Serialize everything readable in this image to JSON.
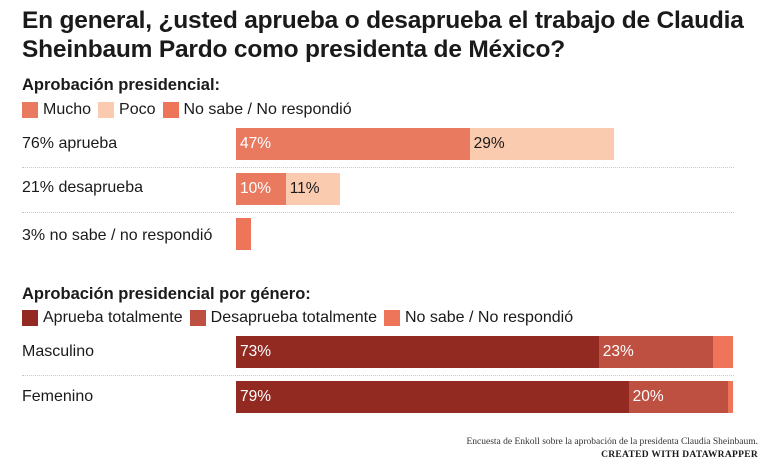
{
  "title": "En general, ¿usted aprueba o desaprueba el trabajo de Claudia Sheinbaum Pardo como presidenta de México?",
  "footer": {
    "source": "Encuesta de Enkoll sobre la aprobación de la presidenta Claudia Sheinbaum.",
    "credit": "CREATED WITH DATAWRAPPER"
  },
  "chart_data": [
    {
      "type": "bar",
      "orientation": "horizontal",
      "stacked": true,
      "title": "Aprobación presidencial:",
      "categories": [
        "76% aprueba",
        "21% desaprueba",
        "3% no sabe / no respondió"
      ],
      "xlim": [
        0,
        100
      ],
      "grid": false,
      "legend_position": "top-left",
      "series": [
        {
          "name": "Mucho",
          "values": [
            47,
            10,
            0
          ],
          "labels": [
            "47%",
            "10%",
            ""
          ],
          "color": "#ea7a5f",
          "text_color": "#ffffff"
        },
        {
          "name": "Poco",
          "values": [
            29,
            11,
            0
          ],
          "labels": [
            "29%",
            "11%",
            ""
          ],
          "color": "#fbcbb0",
          "text_color": "#1a1a1a"
        },
        {
          "name": "No sabe / No respondió",
          "values": [
            0,
            0,
            3
          ],
          "labels": [
            "",
            "",
            ""
          ],
          "color": "#ee7559",
          "text_color": "#ffffff"
        }
      ]
    },
    {
      "type": "bar",
      "orientation": "horizontal",
      "stacked": true,
      "title": "Aprobación presidencial por género:",
      "categories": [
        "Masculino",
        "Femenino"
      ],
      "xlim": [
        0,
        100
      ],
      "grid": false,
      "legend_position": "top-left",
      "series": [
        {
          "name": "Aprueba totalmente",
          "values": [
            73,
            79
          ],
          "labels": [
            "73%",
            "79%"
          ],
          "color": "#922a22",
          "text_color": "#ffffff"
        },
        {
          "name": "Desaprueba totalmente",
          "values": [
            23,
            20
          ],
          "labels": [
            "23%",
            "20%"
          ],
          "color": "#be5041",
          "text_color": "#ffffff"
        },
        {
          "name": "No sabe / No respondió",
          "values": [
            4,
            1
          ],
          "labels": [
            "",
            ""
          ],
          "color": "#ee7559",
          "text_color": "#ffffff"
        }
      ]
    }
  ]
}
